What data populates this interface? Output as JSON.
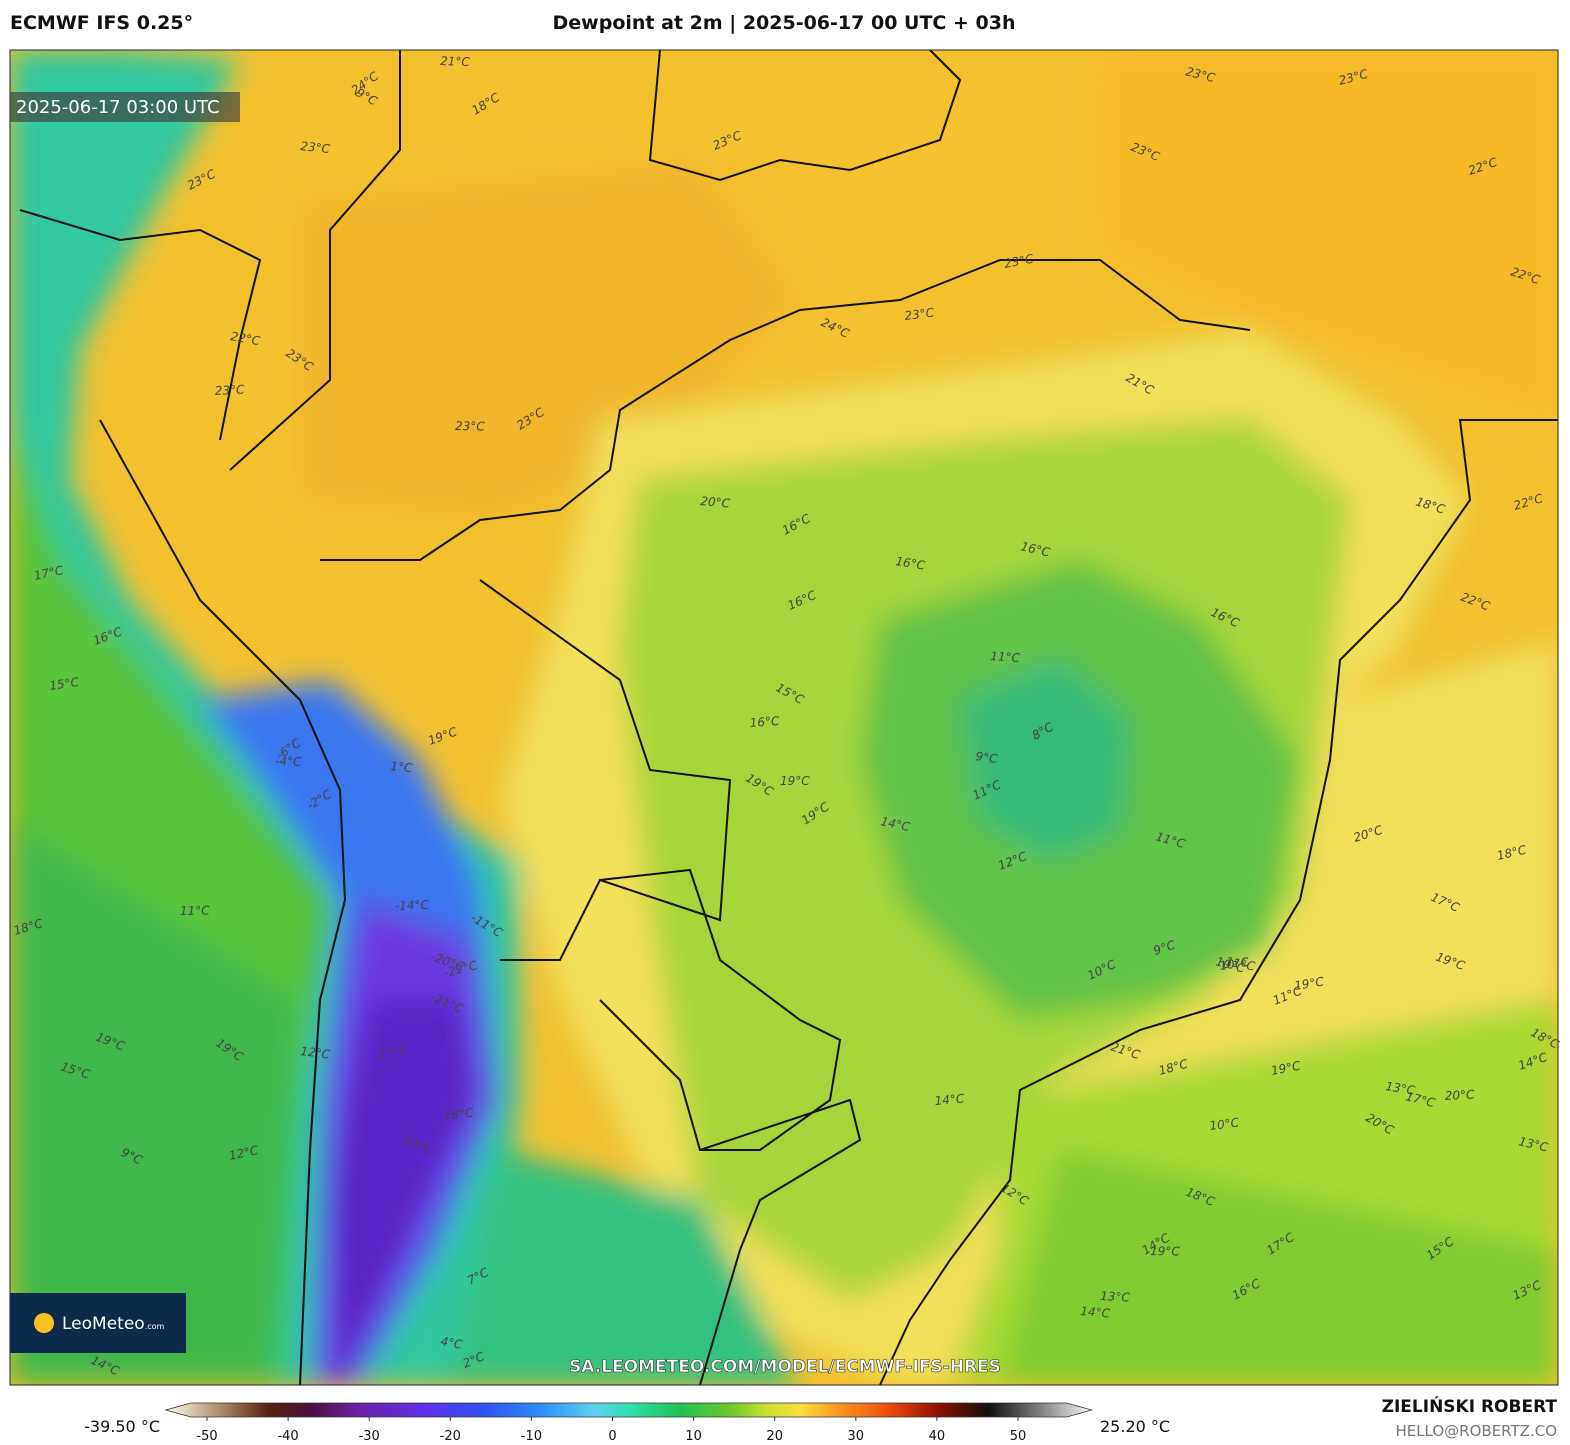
{
  "header": {
    "model": "ECMWF IFS 0.25°",
    "title": "Dewpoint at 2m | 2025-06-17 00 UTC + 03h"
  },
  "map": {
    "timestamp": "2025-06-17 03:00 UTC",
    "logo": "LeoMeteo",
    "logo_suffix": ".com",
    "url": "SA.LEOMETEO.COM/MODEL/ECMWF-IFS-HRES",
    "contour_labels": [
      "24°C",
      "21°C",
      "18°C",
      "23°C",
      "23°C",
      "22°C",
      "23°C",
      "23°C",
      "22°C",
      "22°C",
      "23°C",
      "23°C",
      "23°C",
      "24°C",
      "23°C",
      "21°C",
      "23°C",
      "23°C",
      "23°C",
      "23°C",
      "20°C",
      "16°C",
      "16°C",
      "16°C",
      "16°C",
      "19°C",
      "18°C",
      "22°C",
      "22°C",
      "17°C",
      "16°C",
      "15°C",
      "15°C",
      "16°C",
      "19°C",
      "19°C",
      "19°C",
      "11°C",
      "8°C",
      "9°C",
      "11°C",
      "14°C",
      "12°C",
      "11°C",
      "20°C",
      "19°C",
      "18°C",
      "17°C",
      "19°C",
      "18°C",
      "14°C",
      "12°C",
      "11°C",
      "15°C",
      "13°C",
      "14°C",
      "12°C",
      "10°C",
      "11°C",
      "11°C",
      "10°C",
      "9°C",
      "-20°C",
      "-22°C",
      "-21°C",
      "-17°C",
      "-15°C",
      "-18°C",
      "-11°C",
      "-14°C",
      "-6°C",
      "-4°C",
      "-2°C",
      "1°C",
      "7°C",
      "4°C",
      "2°C",
      "17°C",
      "14°C",
      "21°C",
      "18°C",
      "18°C",
      "19°C",
      "9°C",
      "10°C",
      "20°C",
      "20°C",
      "19°C",
      "19°C",
      "17°C",
      "14°C",
      "16°C",
      "13°C",
      "13°C",
      "13°C",
      "16°C",
      "15°C",
      "18°C",
      "19°C",
      "12°C",
      "14°C",
      "10°C",
      "9°C"
    ]
  },
  "colorbar": {
    "min_label": "-39.50 °C",
    "max_label": "25.20 °C",
    "ticks": [
      -50,
      -40,
      -30,
      -20,
      -10,
      0,
      10,
      20,
      30,
      40,
      50
    ],
    "stops": [
      {
        "value": -52,
        "color": "#fffde8"
      },
      {
        "value": -45,
        "color": "#a08060"
      },
      {
        "value": -40,
        "color": "#5a2010"
      },
      {
        "value": -35,
        "color": "#4a1040"
      },
      {
        "value": -30,
        "color": "#6a20a0"
      },
      {
        "value": -22,
        "color": "#6030e8"
      },
      {
        "value": -15,
        "color": "#3050f0"
      },
      {
        "value": -8,
        "color": "#3090f8"
      },
      {
        "value": -2,
        "color": "#60d0f0"
      },
      {
        "value": 2,
        "color": "#30e0b0"
      },
      {
        "value": 8,
        "color": "#20c050"
      },
      {
        "value": 14,
        "color": "#70c830"
      },
      {
        "value": 18,
        "color": "#c8e030"
      },
      {
        "value": 22,
        "color": "#f8e040"
      },
      {
        "value": 26,
        "color": "#f8a020"
      },
      {
        "value": 32,
        "color": "#f05010"
      },
      {
        "value": 38,
        "color": "#901000"
      },
      {
        "value": 44,
        "color": "#101010"
      },
      {
        "value": 50,
        "color": "#808080"
      },
      {
        "value": 56,
        "color": "#f8f8f8"
      }
    ]
  },
  "footer": {
    "author": "ZIELIŃSKI ROBERT",
    "email": "HELLO@ROBERTZ.CO"
  }
}
